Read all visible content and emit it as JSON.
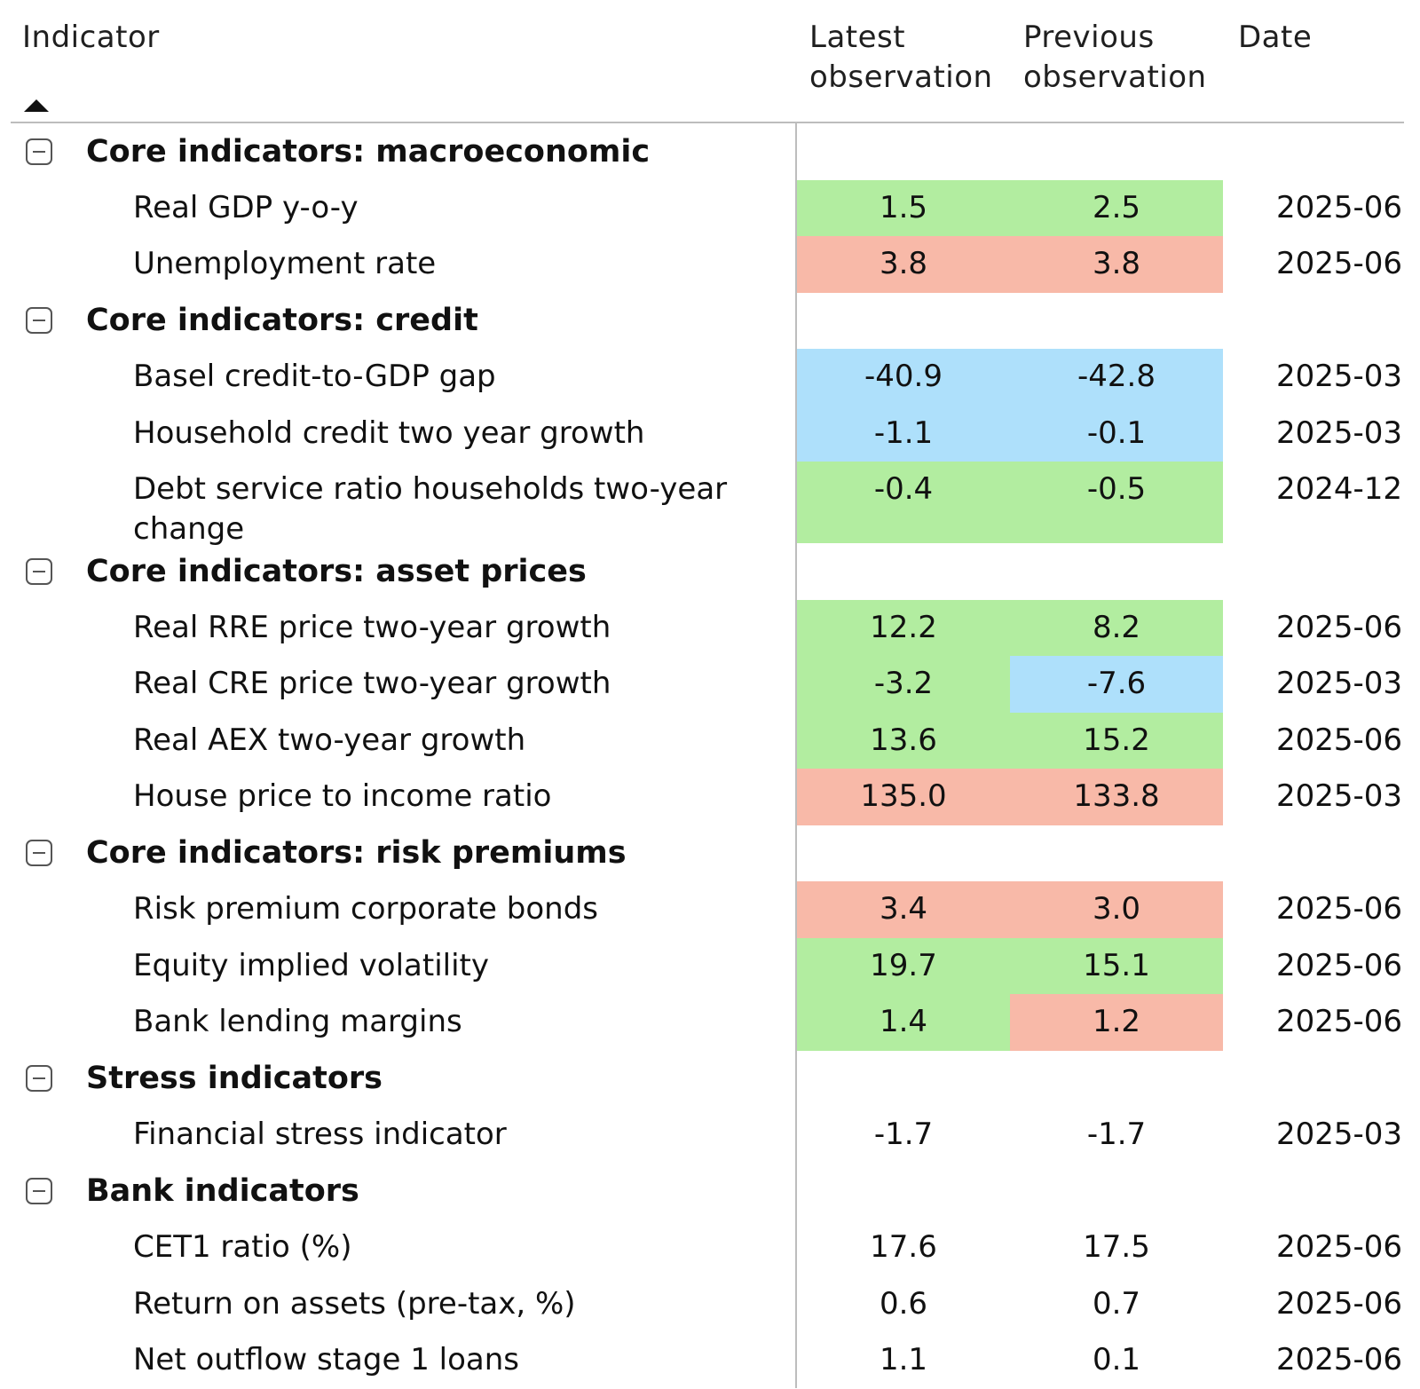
{
  "header": {
    "indicator": "Indicator",
    "latest_line1": "Latest",
    "latest_line2": "observation",
    "previous_line1": "Previous",
    "previous_line2": "observation",
    "date": "Date"
  },
  "colors": {
    "green": "#b2eda0",
    "red": "#f8b9a8",
    "blue": "#aee0fb",
    "none": "transparent"
  },
  "chart_data": {
    "type": "table",
    "columns": [
      "Indicator",
      "Latest observation",
      "Previous observation",
      "Date"
    ],
    "groups": [
      {
        "name": "Core indicators: macroeconomic",
        "rows": [
          {
            "label": "Real GDP y-o-y",
            "latest": "1.5",
            "previous": "2.5",
            "date": "2025-06",
            "latest_color": "green",
            "previous_color": "green"
          },
          {
            "label": "Unemployment rate",
            "latest": "3.8",
            "previous": "3.8",
            "date": "2025-06",
            "latest_color": "red",
            "previous_color": "red"
          }
        ]
      },
      {
        "name": "Core indicators: credit",
        "rows": [
          {
            "label": "Basel credit-to-GDP gap",
            "latest": "-40.9",
            "previous": "-42.8",
            "date": "2025-03",
            "latest_color": "blue",
            "previous_color": "blue"
          },
          {
            "label": "Household credit two year growth",
            "latest": "-1.1",
            "previous": "-0.1",
            "date": "2025-03",
            "latest_color": "blue",
            "previous_color": "blue"
          },
          {
            "label": "Debt service ratio households two-year change",
            "latest": "-0.4",
            "previous": "-0.5",
            "date": "2024-12",
            "latest_color": "green",
            "previous_color": "green",
            "tall": true
          }
        ]
      },
      {
        "name": "Core indicators: asset prices",
        "rows": [
          {
            "label": "Real RRE price two-year growth",
            "latest": "12.2",
            "previous": "8.2",
            "date": "2025-06",
            "latest_color": "green",
            "previous_color": "green"
          },
          {
            "label": "Real CRE price two-year growth",
            "latest": "-3.2",
            "previous": "-7.6",
            "date": "2025-03",
            "latest_color": "green",
            "previous_color": "blue"
          },
          {
            "label": "Real AEX two-year growth",
            "latest": "13.6",
            "previous": "15.2",
            "date": "2025-06",
            "latest_color": "green",
            "previous_color": "green"
          },
          {
            "label": "House price to income ratio",
            "latest": "135.0",
            "previous": "133.8",
            "date": "2025-03",
            "latest_color": "red",
            "previous_color": "red"
          }
        ]
      },
      {
        "name": "Core indicators: risk premiums",
        "rows": [
          {
            "label": "Risk premium corporate bonds",
            "latest": "3.4",
            "previous": "3.0",
            "date": "2025-06",
            "latest_color": "red",
            "previous_color": "red"
          },
          {
            "label": "Equity implied volatility",
            "latest": "19.7",
            "previous": "15.1",
            "date": "2025-06",
            "latest_color": "green",
            "previous_color": "green"
          },
          {
            "label": "Bank lending margins",
            "latest": "1.4",
            "previous": "1.2",
            "date": "2025-06",
            "latest_color": "green",
            "previous_color": "red"
          }
        ]
      },
      {
        "name": "Stress indicators",
        "rows": [
          {
            "label": "Financial stress indicator",
            "latest": "-1.7",
            "previous": "-1.7",
            "date": "2025-03",
            "latest_color": "none",
            "previous_color": "none"
          }
        ]
      },
      {
        "name": "Bank indicators",
        "rows": [
          {
            "label": "CET1 ratio (%)",
            "latest": "17.6",
            "previous": "17.5",
            "date": "2025-06",
            "latest_color": "none",
            "previous_color": "none"
          },
          {
            "label": "Return on assets (pre-tax, %)",
            "latest": "0.6",
            "previous": "0.7",
            "date": "2025-06",
            "latest_color": "none",
            "previous_color": "none"
          },
          {
            "label": "Net outflow stage 1 loans",
            "latest": "1.1",
            "previous": "0.1",
            "date": "2025-06",
            "latest_color": "none",
            "previous_color": "none"
          }
        ]
      }
    ]
  }
}
